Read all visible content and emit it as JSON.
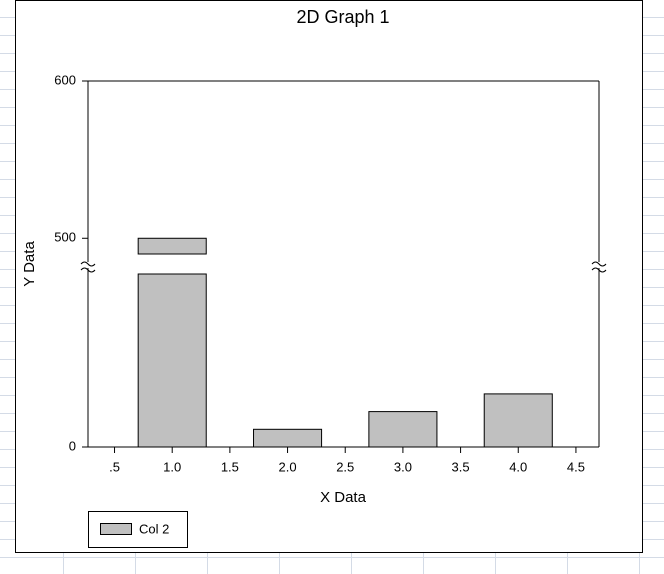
{
  "chart_data": {
    "type": "bar",
    "title": "2D Graph 1",
    "x_label": "X Data",
    "y_label": "Y Data",
    "x": [
      1,
      2,
      3,
      4
    ],
    "series": [
      {
        "name": "Col 2",
        "color": "#c0c0c0",
        "values": [
          500,
          10,
          20,
          30
        ]
      }
    ],
    "xlim": [
      0.27,
      4.7
    ],
    "xticks": [
      {
        "value": 0.5,
        "label": ".5"
      },
      {
        "value": 1,
        "label": "1.0"
      },
      {
        "value": 1.5,
        "label": "1.5"
      },
      {
        "value": 2,
        "label": "2.0"
      },
      {
        "value": 2.5,
        "label": "2.5"
      },
      {
        "value": 3,
        "label": "3.0"
      },
      {
        "value": 3.5,
        "label": "3.5"
      },
      {
        "value": 4,
        "label": "4.0"
      },
      {
        "value": 4.5,
        "label": "4.5"
      }
    ],
    "ylim": [
      0,
      600
    ],
    "ybreak": [
      100,
      490
    ],
    "yticks": [
      0,
      500,
      600
    ],
    "legend": "bottom-left"
  }
}
